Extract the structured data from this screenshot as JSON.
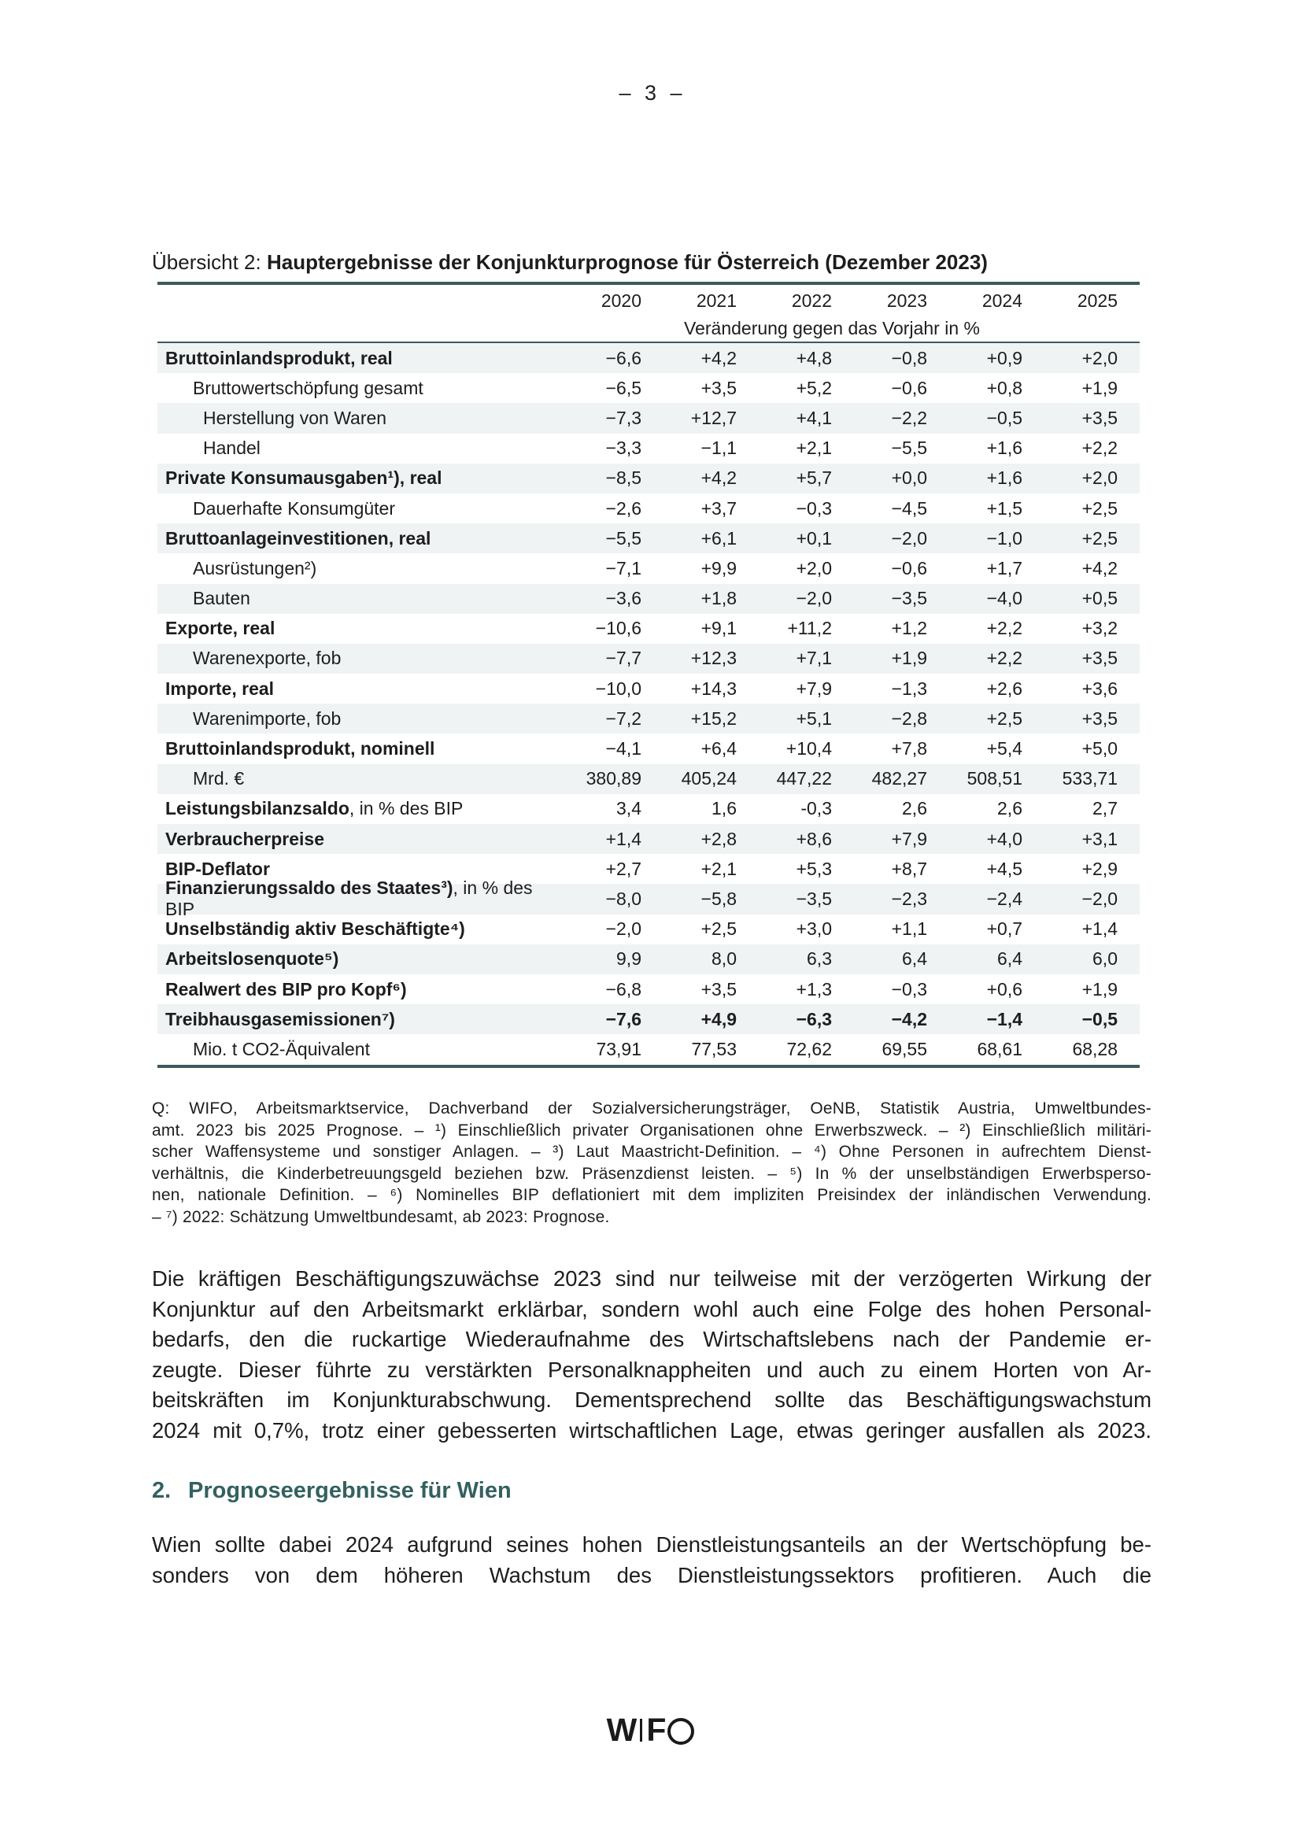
{
  "page": {
    "number": "– 3 –"
  },
  "colors": {
    "accent_rule": "#3c5a5c",
    "row_shading": "#eff3f4",
    "heading": "#336160",
    "text": "#1d1d1f"
  },
  "table": {
    "title_prefix": "Übersicht 2: ",
    "title_bold": "Hauptergebnisse der Konjunkturprognose für Österreich (Dezember 2023)",
    "years": [
      "2020",
      "2021",
      "2022",
      "2023",
      "2024",
      "2025"
    ],
    "subheader": "Veränderung gegen das Vorjahr in %",
    "rows": [
      {
        "label_bold": "Bruttoinlandsprodukt, real",
        "label_rest": "",
        "indent": 0,
        "shaded": true,
        "bold_values": false,
        "values": [
          "−6,6",
          "+4,2",
          "+4,8",
          "−0,8",
          "+0,9",
          "+2,0"
        ]
      },
      {
        "label_bold": "",
        "label_rest": "Bruttowertschöpfung gesamt",
        "indent": 1,
        "shaded": false,
        "bold_values": false,
        "values": [
          "−6,5",
          "+3,5",
          "+5,2",
          "−0,6",
          "+0,8",
          "+1,9"
        ]
      },
      {
        "label_bold": "",
        "label_rest": "Herstellung von Waren",
        "indent": 2,
        "shaded": true,
        "bold_values": false,
        "values": [
          "−7,3",
          "+12,7",
          "+4,1",
          "−2,2",
          "−0,5",
          "+3,5"
        ]
      },
      {
        "label_bold": "",
        "label_rest": "Handel",
        "indent": 2,
        "shaded": false,
        "bold_values": false,
        "values": [
          "−3,3",
          "−1,1",
          "+2,1",
          "−5,5",
          "+1,6",
          "+2,2"
        ]
      },
      {
        "label_bold": "Private Konsumausgaben¹), real",
        "label_rest": "",
        "indent": 0,
        "shaded": true,
        "bold_values": false,
        "values": [
          "−8,5",
          "+4,2",
          "+5,7",
          "+0,0",
          "+1,6",
          "+2,0"
        ]
      },
      {
        "label_bold": "",
        "label_rest": "Dauerhafte Konsumgüter",
        "indent": 1,
        "shaded": false,
        "bold_values": false,
        "values": [
          "−2,6",
          "+3,7",
          "−0,3",
          "−4,5",
          "+1,5",
          "+2,5"
        ]
      },
      {
        "label_bold": "Bruttoanlageinvestitionen, real",
        "label_rest": "",
        "indent": 0,
        "shaded": true,
        "bold_values": false,
        "values": [
          "−5,5",
          "+6,1",
          "+0,1",
          "−2,0",
          "−1,0",
          "+2,5"
        ]
      },
      {
        "label_bold": "",
        "label_rest": "Ausrüstungen²)",
        "indent": 1,
        "shaded": false,
        "bold_values": false,
        "values": [
          "−7,1",
          "+9,9",
          "+2,0",
          "−0,6",
          "+1,7",
          "+4,2"
        ]
      },
      {
        "label_bold": "",
        "label_rest": "Bauten",
        "indent": 1,
        "shaded": true,
        "bold_values": false,
        "values": [
          "−3,6",
          "+1,8",
          "−2,0",
          "−3,5",
          "−4,0",
          "+0,5"
        ]
      },
      {
        "label_bold": "Exporte, real",
        "label_rest": "",
        "indent": 0,
        "shaded": false,
        "bold_values": false,
        "values": [
          "−10,6",
          "+9,1",
          "+11,2",
          "+1,2",
          "+2,2",
          "+3,2"
        ]
      },
      {
        "label_bold": "",
        "label_rest": "Warenexporte, fob",
        "indent": 1,
        "shaded": true,
        "bold_values": false,
        "values": [
          "−7,7",
          "+12,3",
          "+7,1",
          "+1,9",
          "+2,2",
          "+3,5"
        ]
      },
      {
        "label_bold": "Importe, real",
        "label_rest": "",
        "indent": 0,
        "shaded": false,
        "bold_values": false,
        "values": [
          "−10,0",
          "+14,3",
          "+7,9",
          "−1,3",
          "+2,6",
          "+3,6"
        ]
      },
      {
        "label_bold": "",
        "label_rest": "Warenimporte, fob",
        "indent": 1,
        "shaded": true,
        "bold_values": false,
        "values": [
          "−7,2",
          "+15,2",
          "+5,1",
          "−2,8",
          "+2,5",
          "+3,5"
        ]
      },
      {
        "label_bold": "Bruttoinlandsprodukt, nominell",
        "label_rest": "",
        "indent": 0,
        "shaded": false,
        "bold_values": false,
        "values": [
          "−4,1",
          "+6,4",
          "+10,4",
          "+7,8",
          "+5,4",
          "+5,0"
        ]
      },
      {
        "label_bold": "",
        "label_rest": "Mrd. €",
        "indent": 1,
        "shaded": true,
        "bold_values": false,
        "values": [
          "380,89",
          "405,24",
          "447,22",
          "482,27",
          "508,51",
          "533,71"
        ]
      },
      {
        "label_bold": "Leistungsbilanzsaldo",
        "label_rest": ", in % des BIP",
        "indent": 0,
        "shaded": false,
        "bold_values": false,
        "values": [
          "3,4",
          "1,6",
          "-0,3",
          "2,6",
          "2,6",
          "2,7"
        ]
      },
      {
        "label_bold": "Verbraucherpreise",
        "label_rest": "",
        "indent": 0,
        "shaded": true,
        "bold_values": false,
        "values": [
          "+1,4",
          "+2,8",
          "+8,6",
          "+7,9",
          "+4,0",
          "+3,1"
        ]
      },
      {
        "label_bold": "BIP-Deflator",
        "label_rest": "",
        "indent": 0,
        "shaded": false,
        "bold_values": false,
        "values": [
          "+2,7",
          "+2,1",
          "+5,3",
          "+8,7",
          "+4,5",
          "+2,9"
        ]
      },
      {
        "label_bold": "Finanzierungssaldo des Staates³)",
        "label_rest": ", in % des BIP",
        "indent": 0,
        "shaded": true,
        "bold_values": false,
        "values": [
          "−8,0",
          "−5,8",
          "−3,5",
          "−2,3",
          "−2,4",
          "−2,0"
        ]
      },
      {
        "label_bold": "Unselbständig aktiv Beschäftigte⁴)",
        "label_rest": "",
        "indent": 0,
        "shaded": false,
        "bold_values": false,
        "values": [
          "−2,0",
          "+2,5",
          "+3,0",
          "+1,1",
          "+0,7",
          "+1,4"
        ]
      },
      {
        "label_bold": "Arbeitslosenquote⁵)",
        "label_rest": "",
        "indent": 0,
        "shaded": true,
        "bold_values": false,
        "values": [
          "9,9",
          "8,0",
          "6,3",
          "6,4",
          "6,4",
          "6,0"
        ]
      },
      {
        "label_bold": "Realwert des BIP pro Kopf⁶)",
        "label_rest": "",
        "indent": 0,
        "shaded": false,
        "bold_values": false,
        "values": [
          "−6,8",
          "+3,5",
          "+1,3",
          "−0,3",
          "+0,6",
          "+1,9"
        ]
      },
      {
        "label_bold": "Treibhausgasemissionen⁷)",
        "label_rest": "",
        "indent": 0,
        "shaded": true,
        "bold_values": true,
        "values": [
          "−7,6",
          "+4,9",
          "−6,3",
          "−4,2",
          "−1,4",
          "−0,5"
        ]
      },
      {
        "label_bold": "",
        "label_rest": "Mio. t CO2-Äquivalent",
        "indent": 1,
        "shaded": false,
        "bold_values": false,
        "values": [
          "73,91",
          "77,53",
          "72,62",
          "69,55",
          "68,61",
          "68,28"
        ]
      }
    ]
  },
  "footnote": {
    "lines": [
      "Q: WIFO, Arbeitsmarktservice, Dachverband der Sozialversicherungsträger, OeNB, Statistik Austria, Umweltbundes-",
      "amt. 2023 bis 2025 Prognose. – ¹) Einschließlich privater Organisationen ohne Erwerbszweck. – ²) Einschließlich militäri-",
      "scher Waffensysteme und sonstiger Anlagen. – ³) Laut Maastricht-Definition. – ⁴) Ohne Personen in aufrechtem Dienst-",
      "verhältnis, die Kinderbetreuungsgeld beziehen bzw. Präsenzdienst leisten. – ⁵) In % der unselbständigen Erwerbsperso-",
      "nen, nationale Definition. – ⁶) Nominelles BIP deflationiert mit dem impliziten Preisindex der inländischen Verwendung.",
      "– ⁷) 2022: Schätzung Umweltbundesamt, ab 2023: Prognose."
    ]
  },
  "paragraph1": {
    "lines": [
      "Die kräftigen Beschäftigungszuwächse 2023 sind nur teilweise mit der verzögerten Wirkung der",
      "Konjunktur auf den Arbeitsmarkt erklärbar, sondern wohl auch eine Folge des hohen Personal-",
      "bedarfs, den die ruckartige Wiederaufnahme des Wirtschaftslebens nach der Pandemie er-",
      "zeugte. Dieser führte zu verstärkten Personalknappheiten und auch zu einem Horten von Ar-",
      "beitskräften im Konjunkturabschwung. Dementsprechend sollte das Beschäftigungswachstum",
      "2024 mit 0,7%, trotz einer gebesserten wirtschaftlichen Lage, etwas geringer ausfallen als 2023."
    ]
  },
  "section_heading": {
    "number": "2.",
    "text": "Prognoseergebnisse für Wien"
  },
  "paragraph2": {
    "lines": [
      "Wien sollte dabei 2024 aufgrund seines hohen Dienstleistungsanteils an der Wertschöpfung be-",
      "sonders von dem höheren Wachstum des Dienstleistungssektors profitieren. Auch die"
    ]
  },
  "logo": {
    "letter_w": "W",
    "letter_f": "F"
  }
}
